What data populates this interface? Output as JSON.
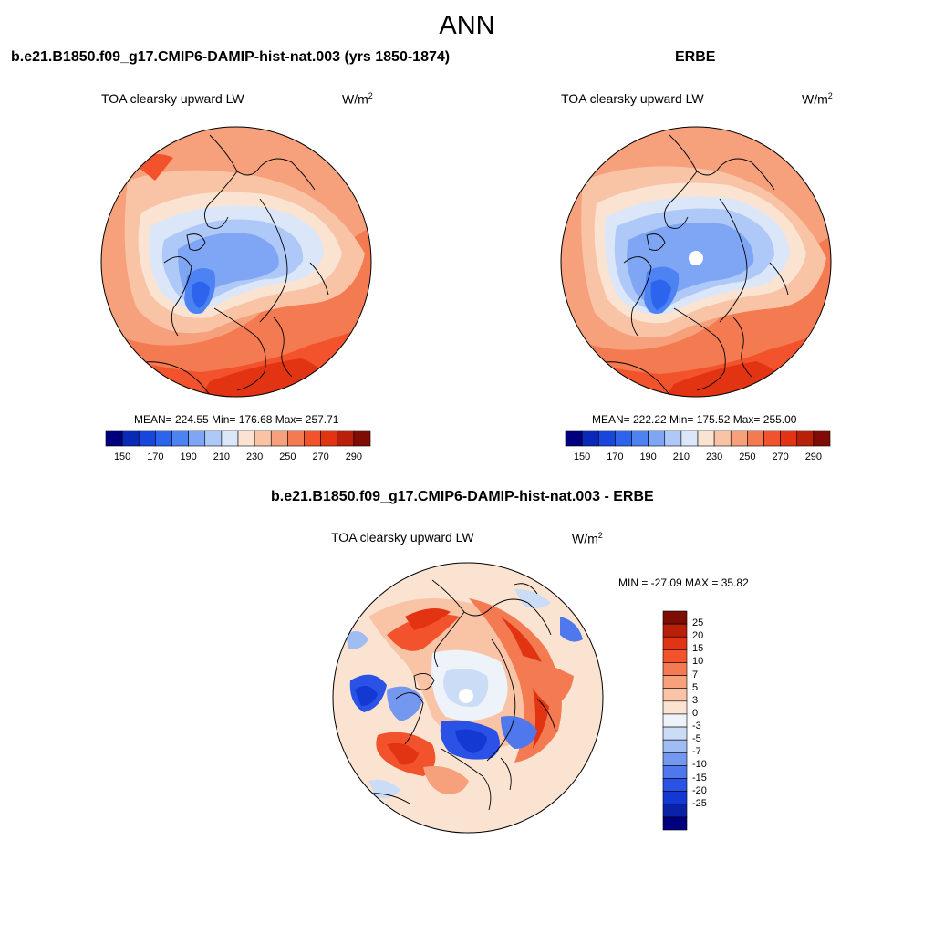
{
  "figure_title": "ANN",
  "panels": [
    {
      "title": "b.e21.B1850.f09_g17.CMIP6-DAMIP-hist-nat.003 (yrs 1850-1874)",
      "variable": "TOA clearsky upward LW",
      "units_base": "W/m",
      "units_sup": "2",
      "stats": "MEAN= 224.55  Min= 176.68  Max= 257.71"
    },
    {
      "title": "ERBE",
      "variable": "TOA clearsky upward LW",
      "units_base": "W/m",
      "units_sup": "2",
      "stats": "MEAN= 222.22  Min= 175.52  Max= 255.00"
    },
    {
      "title": "b.e21.B1850.f09_g17.CMIP6-DAMIP-hist-nat.003 - ERBE",
      "variable": "TOA clearsky upward LW",
      "units_base": "W/m",
      "units_sup": "2",
      "stats": "MIN = -27.09 MAX =  35.82"
    }
  ],
  "colorbar_abs": {
    "colors": [
      "#00007f",
      "#0a29b8",
      "#1846dc",
      "#2c64ee",
      "#4c82f2",
      "#7ea6f5",
      "#aec8f7",
      "#dbe6f9",
      "#fbe3d2",
      "#f9c3a6",
      "#f6a07c",
      "#f47a52",
      "#f2532c",
      "#e23412",
      "#b8200a",
      "#7f0d05"
    ],
    "tick_labels": [
      "150",
      "170",
      "190",
      "210",
      "230",
      "250",
      "270",
      "290"
    ]
  },
  "colorbar_diff": {
    "colors": [
      "#7f0d05",
      "#b8200a",
      "#e23412",
      "#f2532c",
      "#f47a52",
      "#f6a07c",
      "#f9c3a6",
      "#fbe3d2",
      "#eef2f9",
      "#cbdcf6",
      "#9fbcf3",
      "#7497ef",
      "#4f78ec",
      "#2a52e6",
      "#1438d2",
      "#0a22a8",
      "#00007f"
    ],
    "tick_labels": [
      "25",
      "20",
      "15",
      "10",
      "7",
      "5",
      "3",
      "0",
      "-3",
      "-5",
      "-7",
      "-10",
      "-15",
      "-20",
      "-25"
    ]
  }
}
